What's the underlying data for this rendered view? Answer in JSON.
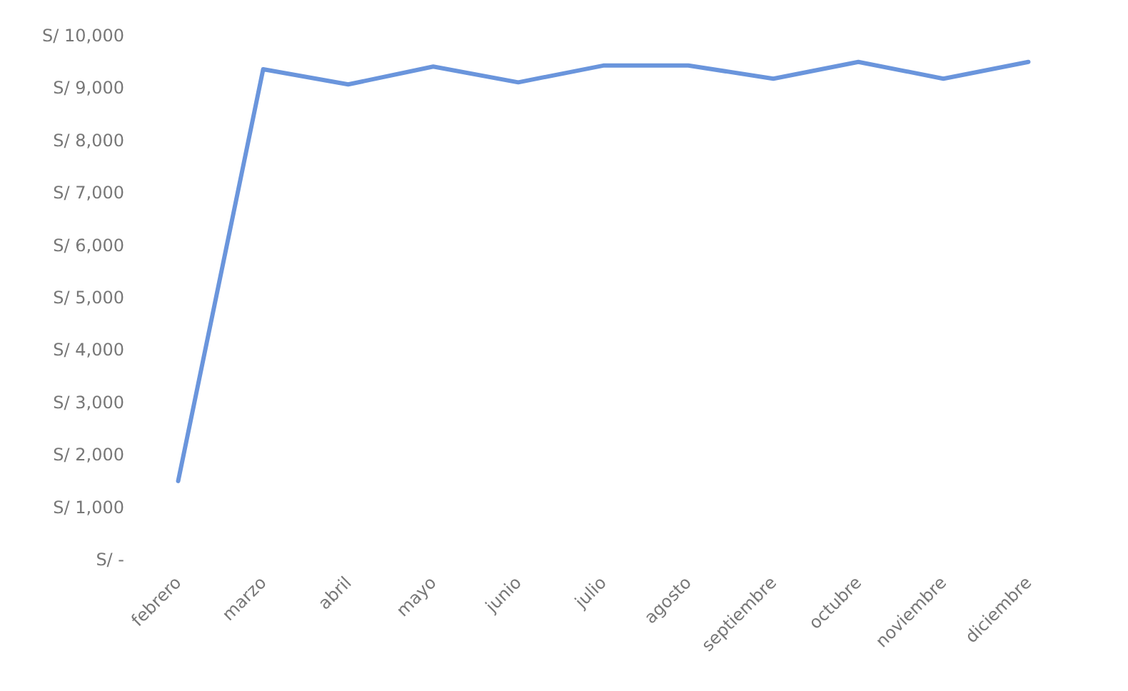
{
  "chart_data": {
    "type": "line",
    "categories": [
      "febrero",
      "marzo",
      "abril",
      "mayo",
      "junio",
      "julio",
      "agosto",
      "septiembre",
      "octubre",
      "noviembre",
      "diciembre"
    ],
    "series": [
      {
        "color": "#6a95dc",
        "values": [
          1500,
          9360,
          9070,
          9410,
          9110,
          9430,
          9430,
          9180,
          9500,
          9180,
          9500
        ]
      }
    ],
    "ylim": [
      0,
      10000
    ],
    "yticks": [
      {
        "value": 0,
        "label": "S/ -"
      },
      {
        "value": 1000,
        "label": "S/ 1,000"
      },
      {
        "value": 2000,
        "label": "S/ 2,000"
      },
      {
        "value": 3000,
        "label": "S/ 3,000"
      },
      {
        "value": 4000,
        "label": "S/ 4,000"
      },
      {
        "value": 5000,
        "label": "S/ 5,000"
      },
      {
        "value": 6000,
        "label": "S/ 6,000"
      },
      {
        "value": 7000,
        "label": "S/ 7,000"
      },
      {
        "value": 8000,
        "label": "S/ 8,000"
      },
      {
        "value": 9000,
        "label": "S/ 9,000"
      },
      {
        "value": 10000,
        "label": "S/ 10,000"
      }
    ],
    "grid": false,
    "marker": "none",
    "line_style": "solid"
  }
}
